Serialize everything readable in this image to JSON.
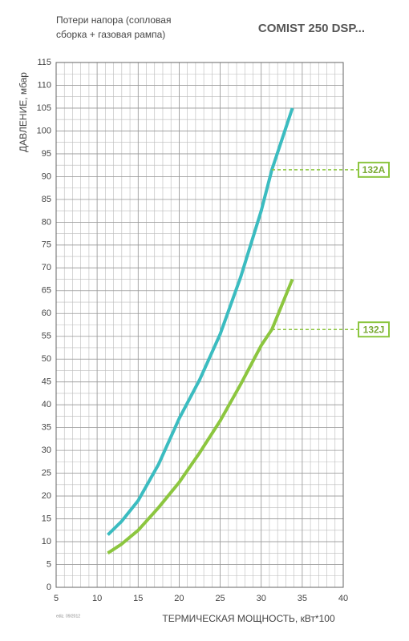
{
  "chart_data": {
    "type": "line",
    "title": "COMIST 250 DSP...",
    "subtitle": "Потери напора (сопловая сборка + газовая рампа)",
    "xlabel": "ТЕРМИЧЕСКАЯ МОЩНОСТЬ, кВт*100",
    "ylabel": "ДАВЛЕНИЕ, мбар",
    "note": "ediz. 09/2012",
    "x": [
      11.3,
      13,
      15,
      17.5,
      20,
      22.5,
      25,
      27.5,
      30,
      31.3,
      33.8
    ],
    "series": [
      {
        "name": "132A",
        "color": "#3bbcc0",
        "values": [
          11.5,
          14.5,
          19,
          27,
          37,
          45.5,
          55.5,
          68,
          82.5,
          91.5,
          105
        ]
      },
      {
        "name": "132J",
        "color": "#8cc63f",
        "values": [
          7.5,
          9.5,
          12.5,
          17.5,
          23,
          29.5,
          36.5,
          44.5,
          53,
          56.5,
          67.5
        ]
      }
    ],
    "xlim": [
      5,
      40
    ],
    "ylim": [
      0,
      115
    ],
    "xticks": [
      5,
      10,
      15,
      20,
      25,
      30,
      35,
      40
    ],
    "yticks": [
      0,
      5,
      10,
      15,
      20,
      25,
      30,
      35,
      40,
      45,
      50,
      55,
      60,
      65,
      70,
      75,
      80,
      85,
      90,
      95,
      100,
      105,
      110,
      115
    ],
    "x_minor_step": 1,
    "y_minor_step": 2.5,
    "grid": true
  }
}
